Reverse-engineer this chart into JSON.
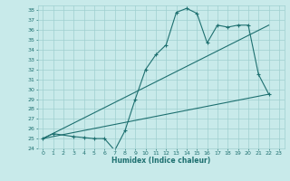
{
  "xlabel": "Humidex (Indice chaleur)",
  "bg_color": "#c8eaea",
  "grid_color": "#9fcfcf",
  "line_color": "#1e7070",
  "xlim": [
    -0.5,
    23.5
  ],
  "ylim": [
    24,
    38.5
  ],
  "xticks": [
    0,
    1,
    2,
    3,
    4,
    5,
    6,
    7,
    8,
    9,
    10,
    11,
    12,
    13,
    14,
    15,
    16,
    17,
    18,
    19,
    20,
    21,
    22,
    23
  ],
  "yticks": [
    24,
    25,
    26,
    27,
    28,
    29,
    30,
    31,
    32,
    33,
    34,
    35,
    36,
    37,
    38
  ],
  "series1_x": [
    0,
    1,
    3,
    4,
    5,
    6,
    7,
    8,
    9,
    10,
    11,
    12,
    13,
    14,
    15,
    16,
    17,
    18,
    19,
    20,
    21,
    22
  ],
  "series1_y": [
    25.0,
    25.5,
    25.2,
    25.1,
    25.0,
    25.0,
    23.8,
    25.8,
    29.0,
    32.0,
    33.5,
    34.5,
    37.8,
    38.2,
    37.7,
    34.7,
    36.5,
    36.3,
    36.5,
    36.5,
    31.5,
    29.5
  ],
  "series2_x": [
    0,
    22
  ],
  "series2_y": [
    25.0,
    36.5
  ],
  "series3_x": [
    0,
    22
  ],
  "series3_y": [
    25.0,
    29.5
  ],
  "tick_fontsize": 4.5,
  "xlabel_fontsize": 5.5
}
